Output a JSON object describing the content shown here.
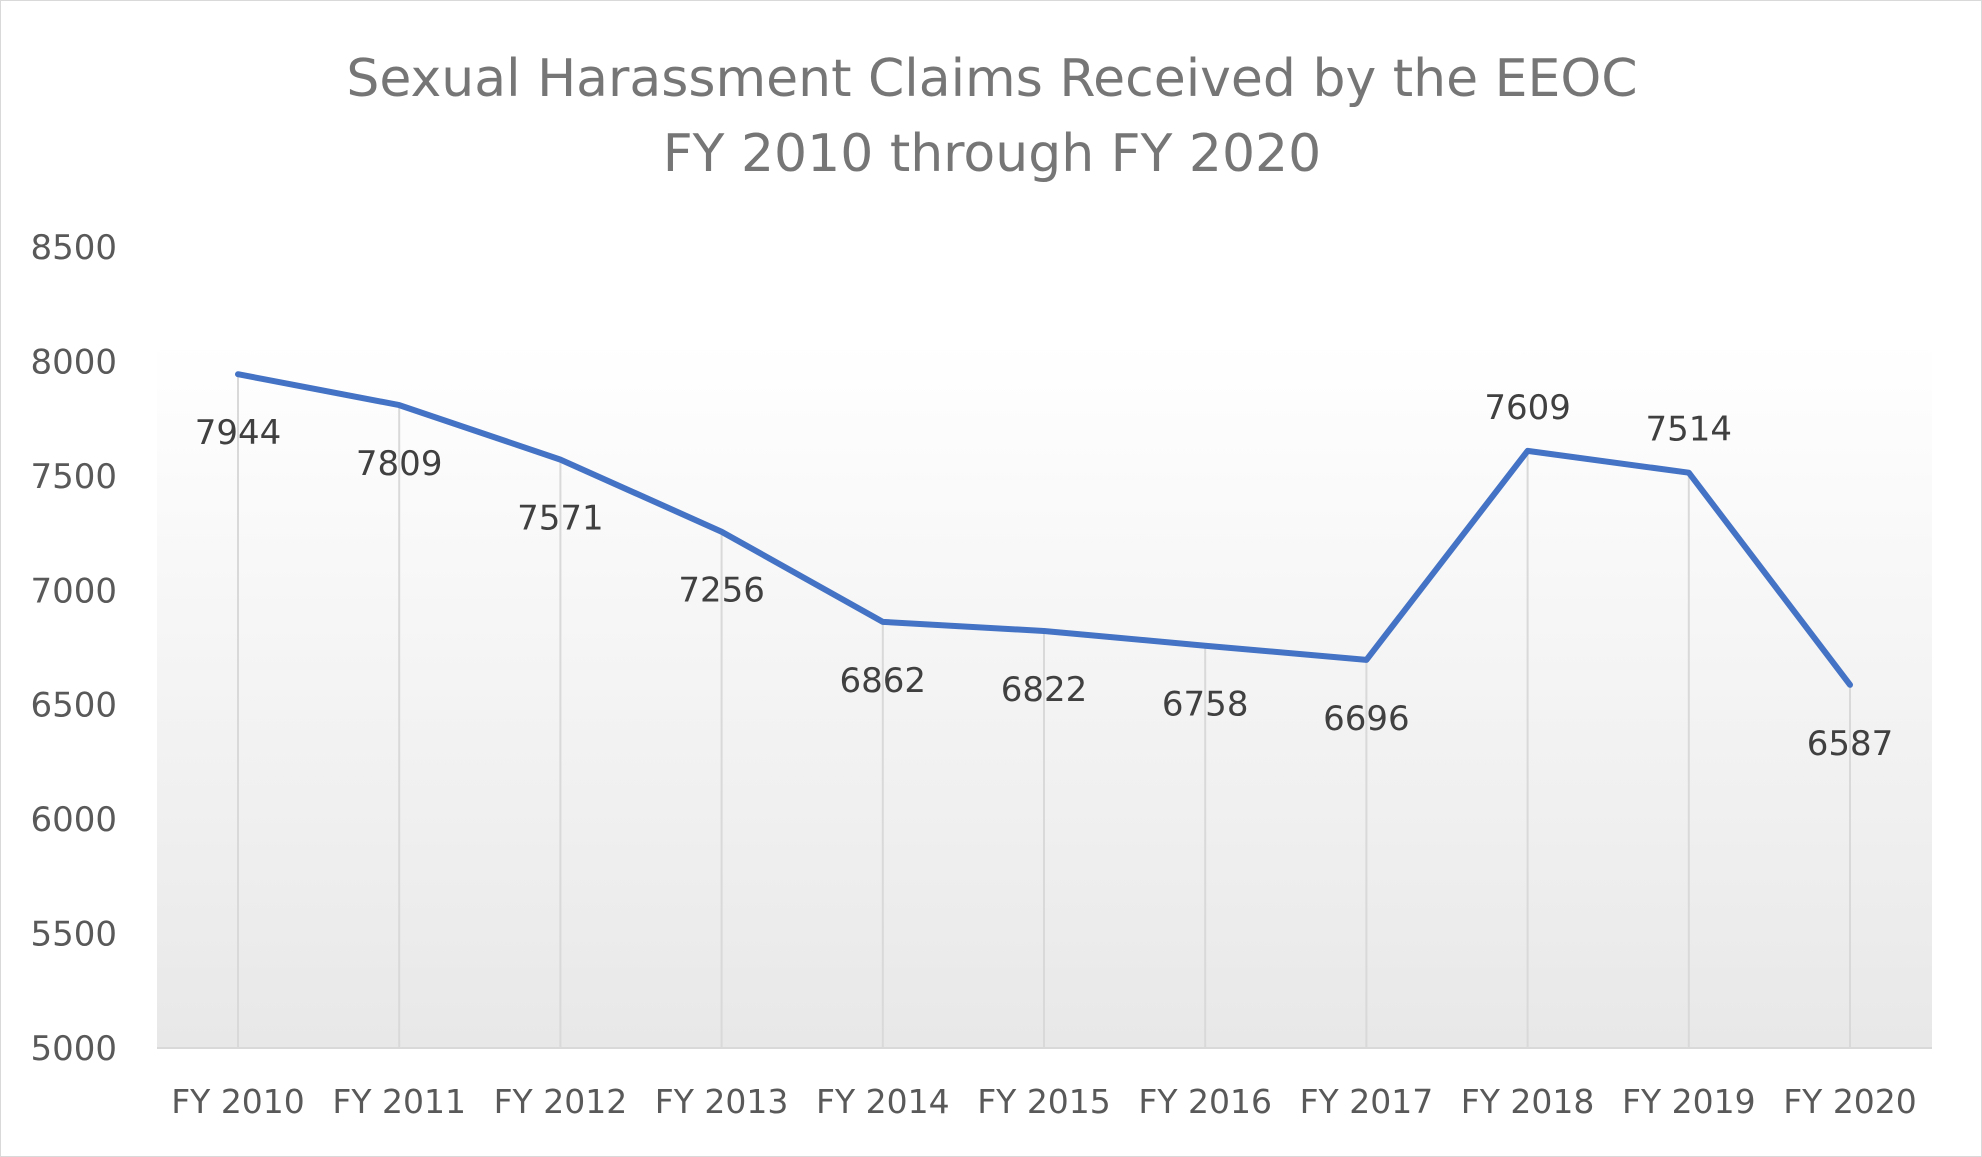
{
  "chart_data": {
    "type": "line",
    "title": "Sexual Harassment Claims Received by the EEOC",
    "subtitle": "FY 2010 through FY 2020",
    "xlabel": "",
    "ylabel": "",
    "categories": [
      "FY 2010",
      "FY 2011",
      "FY 2012",
      "FY 2013",
      "FY 2014",
      "FY 2015",
      "FY 2016",
      "FY 2017",
      "FY 2018",
      "FY 2019",
      "FY 2020"
    ],
    "series": [
      {
        "values": [
          7944,
          7809,
          7571,
          7256,
          6862,
          6822,
          6758,
          6696,
          7609,
          7514,
          6587
        ]
      }
    ],
    "ylim": [
      5000,
      8500
    ],
    "yticks": [
      5000,
      5500,
      6000,
      6500,
      7000,
      7500,
      8000,
      8500
    ],
    "data_labels": [
      "7944",
      "7809",
      "7571",
      "7256",
      "6862",
      "6822",
      "6758",
      "6696",
      "7609",
      "7514",
      "6587"
    ],
    "label_positions": [
      "below",
      "below",
      "below",
      "below",
      "below",
      "below",
      "below",
      "below",
      "above",
      "above",
      "below"
    ],
    "grid": false,
    "drop_lines": true,
    "legend": "none",
    "colors": {
      "line": "#4472c4",
      "drop_line": "#d9d9d9",
      "axis": "#d9d9d9",
      "text": "#595959",
      "title": "#767676"
    }
  }
}
